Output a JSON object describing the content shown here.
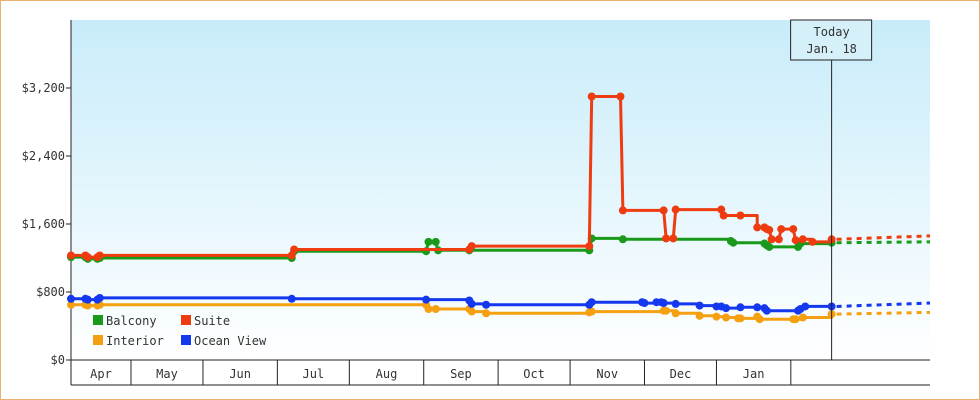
{
  "chart_data": {
    "type": "line",
    "title": "",
    "xlabel": "",
    "ylabel": "",
    "ylim": [
      0,
      4000
    ],
    "yticks": [
      0,
      800,
      1600,
      2400,
      3200
    ],
    "ytick_labels": [
      "$0",
      "$800",
      "$1,600",
      "$2,400",
      "$3,200"
    ],
    "x_range": [
      "2020-03-07",
      "2021-02-28"
    ],
    "months": [
      {
        "label": "Apr",
        "start": "2020-03-07",
        "end": "2020-04-01"
      },
      {
        "label": "May",
        "start": "2020-04-01",
        "end": "2020-05-01"
      },
      {
        "label": "Jun",
        "start": "2020-05-01",
        "end": "2020-06-01"
      },
      {
        "label": "Jul",
        "start": "2020-06-01",
        "end": "2020-07-01"
      },
      {
        "label": "Aug",
        "start": "2020-07-01",
        "end": "2020-08-01"
      },
      {
        "label": "Sep",
        "start": "2020-08-01",
        "end": "2020-09-01"
      },
      {
        "label": "Oct",
        "start": "2020-09-01",
        "end": "2020-10-01"
      },
      {
        "label": "Nov",
        "start": "2020-10-01",
        "end": "2020-11-01"
      },
      {
        "label": "Dec",
        "start": "2020-11-01",
        "end": "2020-12-01"
      },
      {
        "label": "Jan",
        "start": "2020-12-01",
        "end": "2021-01-01"
      },
      {
        "label": "",
        "start": "2021-01-01",
        "end": "2021-02-01"
      }
    ],
    "today": {
      "date": "2021-01-18",
      "line1": "Today",
      "line2": "Jan. 18"
    },
    "projection_end": "2021-02-28",
    "legend": {
      "position": "bottom-left"
    },
    "series": [
      {
        "name": "Balcony",
        "color": "#1a9a1a",
        "points": [
          [
            "2020-03-07",
            1210
          ],
          [
            "2020-03-13",
            1210
          ],
          [
            "2020-03-14",
            1190
          ],
          [
            "2020-03-18",
            1190
          ],
          [
            "2020-03-19",
            1200
          ],
          [
            "2020-06-07",
            1200
          ],
          [
            "2020-06-08",
            1280
          ],
          [
            "2020-08-02",
            1280
          ],
          [
            "2020-08-03",
            1390
          ],
          [
            "2020-08-06",
            1390
          ],
          [
            "2020-08-07",
            1290
          ],
          [
            "2020-08-20",
            1290
          ],
          [
            "2020-10-09",
            1290
          ],
          [
            "2020-10-10",
            1430
          ],
          [
            "2020-10-23",
            1420
          ],
          [
            "2020-12-07",
            1400
          ],
          [
            "2020-12-08",
            1380
          ],
          [
            "2020-12-21",
            1370
          ],
          [
            "2020-12-22",
            1350
          ],
          [
            "2020-12-23",
            1330
          ],
          [
            "2021-01-04",
            1330
          ],
          [
            "2021-01-05",
            1370
          ],
          [
            "2021-01-18",
            1380
          ]
        ]
      },
      {
        "name": "Suite",
        "color": "#ee3c10",
        "points": [
          [
            "2020-03-07",
            1230
          ],
          [
            "2020-03-13",
            1230
          ],
          [
            "2020-03-14",
            1210
          ],
          [
            "2020-03-18",
            1210
          ],
          [
            "2020-03-19",
            1230
          ],
          [
            "2020-06-07",
            1230
          ],
          [
            "2020-06-08",
            1300
          ],
          [
            "2020-08-20",
            1300
          ],
          [
            "2020-08-21",
            1340
          ],
          [
            "2020-10-09",
            1340
          ],
          [
            "2020-10-10",
            3100
          ],
          [
            "2020-10-22",
            3100
          ],
          [
            "2020-10-23",
            1760
          ],
          [
            "2020-11-09",
            1760
          ],
          [
            "2020-11-10",
            1430
          ],
          [
            "2020-11-13",
            1430
          ],
          [
            "2020-11-14",
            1770
          ],
          [
            "2020-12-03",
            1770
          ],
          [
            "2020-12-04",
            1700
          ],
          [
            "2020-12-11",
            1700
          ],
          [
            "2020-12-18",
            1560
          ],
          [
            "2020-12-21",
            1560
          ],
          [
            "2020-12-22",
            1540
          ],
          [
            "2020-12-23",
            1530
          ],
          [
            "2020-12-24",
            1420
          ],
          [
            "2020-12-27",
            1420
          ],
          [
            "2020-12-28",
            1540
          ],
          [
            "2021-01-02",
            1540
          ],
          [
            "2021-01-03",
            1410
          ],
          [
            "2021-01-06",
            1420
          ],
          [
            "2021-01-10",
            1390
          ],
          [
            "2021-01-18",
            1420
          ]
        ]
      },
      {
        "name": "Interior",
        "color": "#f5a010",
        "points": [
          [
            "2020-03-07",
            650
          ],
          [
            "2020-03-13",
            650
          ],
          [
            "2020-03-14",
            640
          ],
          [
            "2020-03-18",
            640
          ],
          [
            "2020-03-19",
            650
          ],
          [
            "2020-08-02",
            650
          ],
          [
            "2020-08-03",
            600
          ],
          [
            "2020-08-06",
            600
          ],
          [
            "2020-08-20",
            600
          ],
          [
            "2020-08-21",
            570
          ],
          [
            "2020-08-27",
            550
          ],
          [
            "2020-10-09",
            560
          ],
          [
            "2020-10-10",
            570
          ],
          [
            "2020-11-09",
            580
          ],
          [
            "2020-11-10",
            580
          ],
          [
            "2020-11-14",
            550
          ],
          [
            "2020-11-24",
            520
          ],
          [
            "2020-12-01",
            510
          ],
          [
            "2020-12-05",
            500
          ],
          [
            "2020-12-10",
            490
          ],
          [
            "2020-12-11",
            490
          ],
          [
            "2020-12-18",
            510
          ],
          [
            "2020-12-19",
            480
          ],
          [
            "2021-01-02",
            480
          ],
          [
            "2021-01-03",
            480
          ],
          [
            "2021-01-06",
            500
          ],
          [
            "2021-01-18",
            540
          ]
        ]
      },
      {
        "name": "Ocean View",
        "color": "#1438ee",
        "points": [
          [
            "2020-03-07",
            720
          ],
          [
            "2020-03-13",
            720
          ],
          [
            "2020-03-14",
            710
          ],
          [
            "2020-03-18",
            710
          ],
          [
            "2020-03-19",
            730
          ],
          [
            "2020-06-07",
            720
          ],
          [
            "2020-08-02",
            710
          ],
          [
            "2020-08-20",
            700
          ],
          [
            "2020-08-21",
            660
          ],
          [
            "2020-08-27",
            650
          ],
          [
            "2020-10-09",
            650
          ],
          [
            "2020-10-10",
            680
          ],
          [
            "2020-10-31",
            680
          ],
          [
            "2020-11-01",
            670
          ],
          [
            "2020-11-06",
            680
          ],
          [
            "2020-11-08",
            680
          ],
          [
            "2020-11-09",
            670
          ],
          [
            "2020-11-14",
            660
          ],
          [
            "2020-11-24",
            640
          ],
          [
            "2020-12-01",
            630
          ],
          [
            "2020-12-03",
            630
          ],
          [
            "2020-12-05",
            610
          ],
          [
            "2020-12-11",
            620
          ],
          [
            "2020-12-18",
            620
          ],
          [
            "2020-12-21",
            610
          ],
          [
            "2020-12-22",
            580
          ],
          [
            "2021-01-04",
            580
          ],
          [
            "2021-01-05",
            600
          ],
          [
            "2021-01-07",
            630
          ],
          [
            "2021-01-18",
            630
          ]
        ]
      }
    ],
    "projection": [
      {
        "name": "Balcony",
        "end_value": 1390
      },
      {
        "name": "Suite",
        "end_value": 1460
      },
      {
        "name": "Interior",
        "end_value": 560
      },
      {
        "name": "Ocean View",
        "end_value": 670
      }
    ]
  }
}
